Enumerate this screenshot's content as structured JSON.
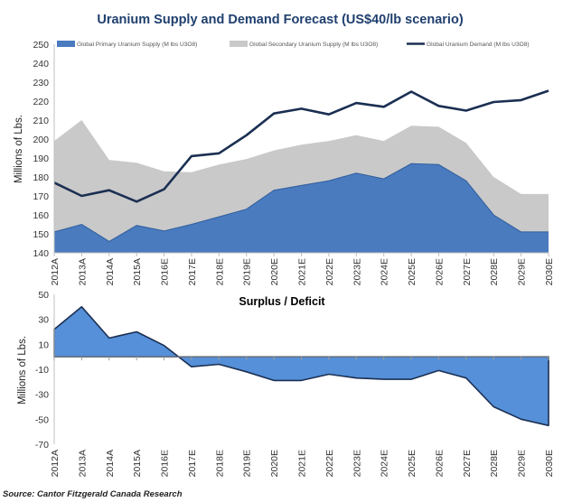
{
  "chart_data": [
    {
      "type": "area",
      "title": "Uranium Supply and Demand Forecast (US$40/lb scenario)",
      "xlabel": "",
      "ylabel": "Millions of Lbs.",
      "ylim": [
        140,
        250
      ],
      "yticks": [
        140,
        150,
        160,
        170,
        180,
        190,
        200,
        210,
        220,
        230,
        240,
        250
      ],
      "grid": false,
      "legend_position": "top",
      "categories": [
        "2012A",
        "2013A",
        "2014A",
        "2015A",
        "2016E",
        "2017E",
        "2018E",
        "2019E",
        "2020E",
        "2021E",
        "2022E",
        "2023E",
        "2024E",
        "2025E",
        "2026E",
        "2027E",
        "2028E",
        "2029E",
        "2030E"
      ],
      "series": [
        {
          "name": "Global Primary Uranium Supply (M lbs U3O8)",
          "kind": "area",
          "color": "#4a7bbf",
          "values": [
            151,
            155,
            146,
            154.5,
            151.5,
            155,
            159,
            163,
            173,
            175.5,
            178,
            182,
            179,
            187,
            186.5,
            178,
            160,
            151,
            151
          ]
        },
        {
          "name": "Global Secondary Uranium Supply (M lbs U3O8)",
          "kind": "stacked-area",
          "color": "#c9c9c9",
          "values": [
            48,
            55,
            43,
            33,
            31.5,
            27.5,
            27.5,
            26.5,
            21,
            21.5,
            21,
            20,
            20,
            20,
            20,
            20,
            20,
            20,
            20
          ]
        },
        {
          "name": "Global Uranium Demand (M lbs U3O8)",
          "kind": "line",
          "color": "#1b2f52",
          "values": [
            177,
            170,
            173,
            167,
            173.5,
            191,
            192.5,
            202,
            213.5,
            216,
            213,
            219,
            217,
            225,
            217.5,
            215,
            219.5,
            220.5,
            225.5
          ]
        }
      ]
    },
    {
      "type": "area",
      "title": "Surplus / Deficit",
      "xlabel": "",
      "ylabel": "Millions of Lbs.",
      "ylim": [
        -70,
        50
      ],
      "yticks": [
        -70,
        -50,
        -30,
        -10,
        10,
        30,
        50
      ],
      "grid": false,
      "categories": [
        "2012A",
        "2013A",
        "2014A",
        "2015A",
        "2016E",
        "2017E",
        "2018E",
        "2019E",
        "2020E",
        "2021E",
        "2022E",
        "2023E",
        "2024E",
        "2025E",
        "2026E",
        "2027E",
        "2028E",
        "2029E",
        "2030E"
      ],
      "series": [
        {
          "kind": "area",
          "color": "#5590d9",
          "line_color": "#1b2f52",
          "values": [
            22,
            40,
            15,
            20,
            9,
            -8,
            -6,
            -12,
            -19,
            -19,
            -14,
            -17,
            -18,
            -18,
            -11,
            -17,
            -40,
            -50,
            -55
          ]
        }
      ]
    }
  ],
  "source": "Source: Cantor Fitzgerald Canada Research"
}
